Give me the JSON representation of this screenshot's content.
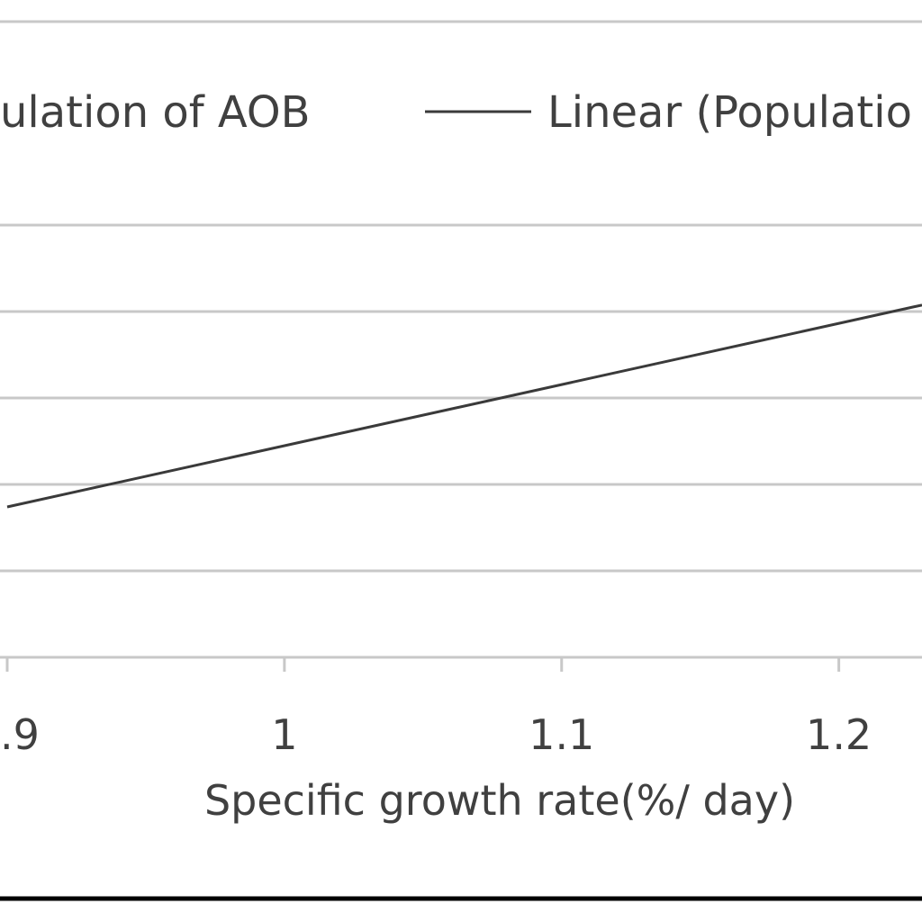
{
  "chart_data": {
    "type": "line",
    "xlabel": "Specific growth rate(%/ day)",
    "x_ticks": [
      ".9",
      "1",
      "1.1",
      "1.2"
    ],
    "x_tick_values": [
      0.9,
      1.0,
      1.1,
      1.2
    ],
    "xlim": [
      0.9,
      1.23
    ],
    "y_gridline_count": 5,
    "grid": true,
    "legend": {
      "placement": "top",
      "entries": [
        {
          "label": "ulation of AOB",
          "marker": "none"
        },
        {
          "label": "Linear (Populatio",
          "marker": "line"
        }
      ]
    },
    "series": [
      {
        "type": "linear-trendline",
        "x": [
          0.9,
          1.23
        ],
        "y_relative": [
          0.348,
          0.815
        ]
      }
    ],
    "colors": {
      "gridline": "#c8c8c8",
      "line": "#3a3a3a",
      "text": "#404040",
      "border": "#000000"
    }
  }
}
